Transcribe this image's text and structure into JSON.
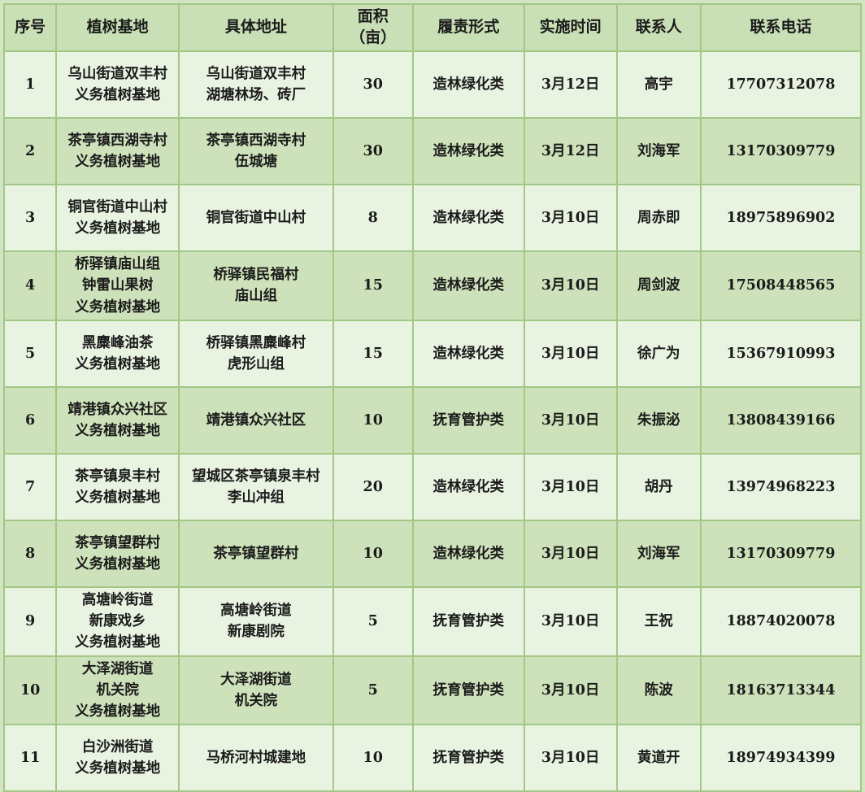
{
  "table": {
    "title_semantic": "义务植树基地一览表",
    "columns": [
      {
        "key": "index",
        "label": "序号"
      },
      {
        "key": "base",
        "label": "植树基地"
      },
      {
        "key": "address",
        "label": "具体地址"
      },
      {
        "key": "area",
        "label": "面积\n（亩）"
      },
      {
        "key": "duty",
        "label": "履责形式"
      },
      {
        "key": "date",
        "label": "实施时间"
      },
      {
        "key": "contact",
        "label": "联系人"
      },
      {
        "key": "phone",
        "label": "联系电话"
      }
    ],
    "rows": [
      [
        "1",
        "乌山街道双丰村\n义务植树基地",
        "乌山街道双丰村\n湖塘林场、砖厂",
        "30",
        "造林绿化类",
        "3月12日",
        "高宇",
        "17707312078"
      ],
      [
        "2",
        "茶亭镇西湖寺村\n义务植树基地",
        "茶亭镇西湖寺村\n伍城塘",
        "30",
        "造林绿化类",
        "3月12日",
        "刘海军",
        "13170309779"
      ],
      [
        "3",
        "铜官街道中山村\n义务植树基地",
        "铜官街道中山村",
        "8",
        "造林绿化类",
        "3月10日",
        "周赤即",
        "18975896902"
      ],
      [
        "4",
        "桥驿镇庙山组\n钟雷山果树\n义务植树基地",
        "桥驿镇民福村\n庙山组",
        "15",
        "造林绿化类",
        "3月10日",
        "周剑波",
        "17508448565"
      ],
      [
        "5",
        "黑麋峰油茶\n义务植树基地",
        "桥驿镇黑麋峰村\n虎形山组",
        "15",
        "造林绿化类",
        "3月10日",
        "徐广为",
        "15367910993"
      ],
      [
        "6",
        "靖港镇众兴社区\n义务植树基地",
        "靖港镇众兴社区",
        "10",
        "抚育管护类",
        "3月10日",
        "朱振泌",
        "13808439166"
      ],
      [
        "7",
        "茶亭镇泉丰村\n义务植树基地",
        "望城区茶亭镇泉丰村\n李山冲组",
        "20",
        "造林绿化类",
        "3月10日",
        "胡丹",
        "13974968223"
      ],
      [
        "8",
        "茶亭镇望群村\n义务植树基地",
        "茶亭镇望群村",
        "10",
        "造林绿化类",
        "3月10日",
        "刘海军",
        "13170309779"
      ],
      [
        "9",
        "高塘岭街道\n新康戏乡\n义务植树基地",
        "高塘岭街道\n新康剧院",
        "5",
        "抚育管护类",
        "3月10日",
        "王祝",
        "18874020078"
      ],
      [
        "10",
        "大泽湖街道\n机关院\n义务植树基地",
        "大泽湖街道\n机关院",
        "5",
        "抚育管护类",
        "3月10日",
        "陈波",
        "18163713344"
      ],
      [
        "11",
        "白沙洲街道\n义务植树基地",
        "马桥河村城建地",
        "10",
        "抚育管护类",
        "3月10日",
        "黄道开",
        "18974934399"
      ]
    ]
  },
  "colors": {
    "header_bg": "#c9dfb5",
    "row_even_bg": "#cde2ba",
    "row_odd_bg": "#e9f3e1",
    "grid_line": "#a2c786",
    "outer_margin": "#d2e5c3",
    "text": "#1b1b1b"
  }
}
